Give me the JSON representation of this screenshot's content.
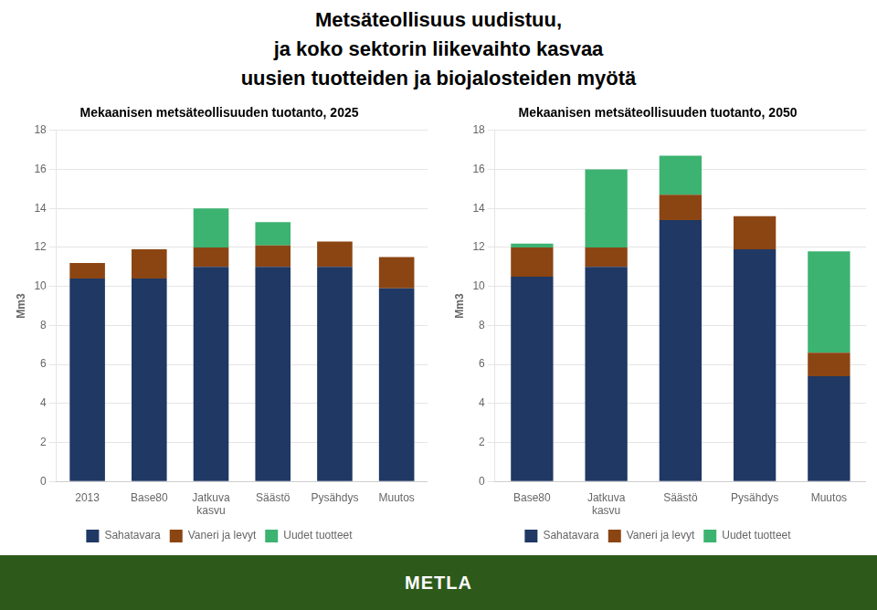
{
  "title": "Metsäteollisuus uudistuu,\nja koko sektorin liikevaihto kasvaa\nuusien tuotteiden ja biojalosteiden myötä",
  "annotations": [
    {
      "text": "METLA",
      "color": "#2D5A1B"
    }
  ],
  "chart_data": [
    {
      "type": "bar",
      "title": "Mekaanisen metsäteollisuuden tuotanto, 2025",
      "y_label": "Mm3",
      "categories": [
        "2013",
        "Base80",
        "Jatkuva\nkasvu",
        "Säästö",
        "Pysähdys",
        "Muutos"
      ],
      "series": [
        {
          "name": "Sahatavara",
          "color": "#1F3864",
          "values": [
            10.4,
            10.4,
            11.0,
            11.0,
            11.0,
            9.9
          ]
        },
        {
          "name": "Vaneri ja levyt",
          "color": "#8B4513",
          "values": [
            0.8,
            1.5,
            1.0,
            1.1,
            1.3,
            1.6
          ]
        },
        {
          "name": "Uudet tuotteet",
          "color": "#3CB371",
          "values": [
            0.0,
            0.0,
            2.0,
            1.2,
            0.0,
            0.0
          ]
        }
      ],
      "stacked": true,
      "ylim": [
        0,
        18
      ],
      "yticks": [
        0,
        2,
        4,
        6,
        8,
        10,
        12,
        14,
        16,
        18
      ],
      "grid": true,
      "legend": "bottom"
    },
    {
      "type": "bar",
      "title": "Mekaanisen metsäteollisuuden tuotanto, 2050",
      "y_label": "Mm3",
      "categories": [
        "Base80",
        "Jatkuva\nkasvu",
        "Säästö",
        "Pysähdys",
        "Muutos"
      ],
      "series": [
        {
          "name": "Sahatavara",
          "color": "#1F3864",
          "values": [
            10.5,
            11.0,
            13.4,
            11.9,
            5.4
          ]
        },
        {
          "name": "Vaneri ja levyt",
          "color": "#8B4513",
          "values": [
            1.5,
            1.0,
            1.3,
            1.7,
            1.2
          ]
        },
        {
          "name": "Uudet tuotteet",
          "color": "#3CB371",
          "values": [
            0.2,
            4.0,
            2.0,
            0.0,
            5.2
          ]
        }
      ],
      "stacked": true,
      "ylim": [
        0,
        18
      ],
      "yticks": [
        0,
        2,
        4,
        6,
        8,
        10,
        12,
        14,
        16,
        18
      ],
      "grid": true,
      "legend": "bottom"
    }
  ]
}
